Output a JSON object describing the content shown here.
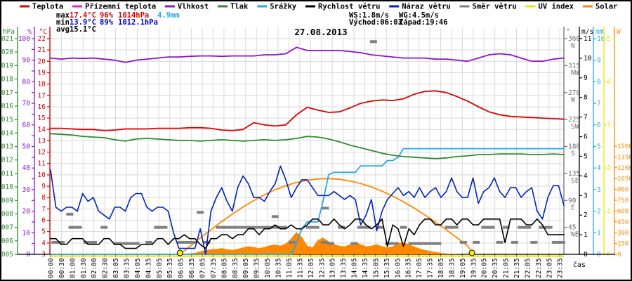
{
  "title": "27.08.2013",
  "legend": {
    "items": [
      {
        "label": "Teplota",
        "color": "#dd0000"
      },
      {
        "label": "Přízemní teplota",
        "color": "#ee22cc"
      },
      {
        "label": "Vlhkost",
        "color": "#8c14c8"
      },
      {
        "label": "Tlak",
        "color": "#2e8b2e"
      },
      {
        "label": "Srážky",
        "color": "#22aaee"
      },
      {
        "label": "Rychlost větru",
        "color": "#000000"
      },
      {
        "label": "Náraz větru",
        "color": "#0022bb"
      },
      {
        "label": "Směr větru",
        "color": "#808080"
      },
      {
        "label": "UV index",
        "color": "#f0e000"
      },
      {
        "label": "Solar",
        "color": "#ff8800"
      }
    ]
  },
  "stats": {
    "left_rows": [
      [
        {
          "text": "max",
          "color": "#000000"
        },
        {
          "text": "17.4°C",
          "color": "#dd0000"
        },
        {
          "text": "96%",
          "color": "#dd0000"
        },
        {
          "text": "1014hPa",
          "color": "#dd0000"
        },
        {
          "text": "4.9mm",
          "color": "#22aaee"
        }
      ],
      [
        {
          "text": "min",
          "color": "#000000"
        },
        {
          "text": "13.9°C",
          "color": "#0000cc"
        },
        {
          "text": "89%",
          "color": "#0000cc"
        },
        {
          "text": "1012.1hPa",
          "color": "#0000cc"
        }
      ],
      [
        {
          "text": "avg",
          "color": "#000000"
        },
        {
          "text": "15.1°C",
          "color": "#000000"
        }
      ]
    ],
    "right_rows": [
      [
        {
          "text": "WS:1.8m/s",
          "color": "#000000"
        },
        {
          "text": "WG:4.5m/s",
          "color": "#000000"
        }
      ],
      [
        {
          "text": "Východ:06:03",
          "color": "#000000"
        },
        {
          "text": "Západ:19:46",
          "color": "#000000"
        }
      ]
    ]
  },
  "x_axis": {
    "title": "čas",
    "labels": [
      "00:00",
      "00:30",
      "01:00",
      "01:30",
      "02:00",
      "02:30",
      "03:05",
      "03:35",
      "04:05",
      "04:35",
      "05:05",
      "05:35",
      "06:05",
      "06:35",
      "07:05",
      "07:35",
      "08:05",
      "08:35",
      "09:05",
      "09:35",
      "10:05",
      "10:35",
      "11:05",
      "11:35",
      "12:05",
      "12:35",
      "13:05",
      "13:35",
      "14:05",
      "14:35",
      "15:05",
      "15:35",
      "16:05",
      "16:35",
      "17:05",
      "17:35",
      "18:05",
      "18:35",
      "19:05",
      "19:35",
      "20:05",
      "20:35",
      "21:05",
      "21:35",
      "22:05",
      "22:35",
      "23:05",
      "23:35"
    ]
  },
  "chart_data": {
    "type": "line",
    "title": "27.08.2013",
    "grid": true,
    "axes": {
      "left": [
        {
          "unit": "hPa",
          "color": "#2e8b2e",
          "min": 1005,
          "max": 1021,
          "tick": 1,
          "label_every": 1
        },
        {
          "unit": "%",
          "color": "#8c14c8",
          "min": 0,
          "max": 100,
          "tick": 5,
          "label_every": 10
        },
        {
          "unit": "°C",
          "color": "#dd0000",
          "min": 3,
          "max": 22,
          "tick": 1,
          "label_every": 1
        }
      ],
      "right": [
        {
          "unit": "°",
          "color": "#707070",
          "min": 0,
          "max": 360,
          "tick": 45,
          "compass": {
            "360": "N",
            "315": "NW",
            "270": "W",
            "225": "SW",
            "180": "S",
            "135": "SE",
            "90": "E",
            "45": "NE"
          }
        },
        {
          "unit": "m/s",
          "color": "#000000",
          "min": 0,
          "max": 11,
          "tick": 1
        },
        {
          "unit": "mm",
          "color": "#22aaee",
          "min": 0,
          "max": 10,
          "tick": 1
        },
        {
          "unit": "UV",
          "color": "#f0e000",
          "min": 0,
          "max": 5,
          "tick": 1
        },
        {
          "unit": "W",
          "color": "#ff8800",
          "min": 0,
          "max": 2990,
          "tick": 150,
          "label_max": 1500
        }
      ]
    },
    "series": [
      {
        "name": "Teplota",
        "axis": "temp",
        "color": "#dd0000",
        "t_step": 0.5,
        "values": [
          14.1,
          14.1,
          14.05,
          14.0,
          14.0,
          13.9,
          13.95,
          14.05,
          14.05,
          14.05,
          14.1,
          14.1,
          14.1,
          14.15,
          14.15,
          14.1,
          13.95,
          13.9,
          14.0,
          14.6,
          14.4,
          14.3,
          14.4,
          15.3,
          15.95,
          15.7,
          15.5,
          15.55,
          15.9,
          16.3,
          16.5,
          16.6,
          16.55,
          16.7,
          17.1,
          17.35,
          17.4,
          17.25,
          16.9,
          16.5,
          16.0,
          15.55,
          15.3,
          15.15,
          15.1,
          15.05,
          15.0,
          14.95,
          14.9
        ]
      },
      {
        "name": "Vlhkost",
        "axis": "humidity",
        "color": "#8c14c8",
        "t_step": 0.5,
        "values": [
          91,
          90.5,
          91,
          90.8,
          91,
          90.5,
          90,
          89,
          90,
          90.5,
          91,
          91.5,
          91.5,
          91.8,
          92,
          92,
          91.8,
          92,
          92,
          92,
          92.5,
          92.5,
          93,
          96,
          94.5,
          94.5,
          94.5,
          94.5,
          94,
          93.5,
          92.5,
          92,
          91.5,
          91,
          91,
          91,
          90.5,
          90.5,
          90,
          89.5,
          91,
          92.5,
          93,
          92.5,
          91,
          89.5,
          89.5,
          90.5,
          91
        ]
      },
      {
        "name": "Tlak",
        "axis": "pressure",
        "color": "#2e8b2e",
        "t_step": 0.5,
        "values": [
          1013.95,
          1013.9,
          1013.85,
          1013.75,
          1013.7,
          1013.65,
          1013.5,
          1013.4,
          1013.55,
          1013.6,
          1013.55,
          1013.5,
          1013.45,
          1013.45,
          1013.4,
          1013.45,
          1013.5,
          1013.45,
          1013.4,
          1013.45,
          1013.5,
          1013.45,
          1013.5,
          1013.6,
          1013.75,
          1013.7,
          1013.55,
          1013.35,
          1013.1,
          1012.9,
          1012.7,
          1012.5,
          1012.35,
          1012.25,
          1012.2,
          1012.15,
          1012.1,
          1012.15,
          1012.25,
          1012.3,
          1012.4,
          1012.4,
          1012.45,
          1012.45,
          1012.45,
          1012.4,
          1012.4,
          1012.45,
          1012.4
        ]
      },
      {
        "name": "Srážky",
        "axis": "rain",
        "color": "#22aaee",
        "t_step": 0.25,
        "values": [
          0,
          0,
          0,
          0,
          0,
          0,
          0,
          0,
          0,
          0,
          0,
          0,
          0,
          0,
          0,
          0,
          0,
          0,
          0,
          0,
          0,
          0,
          0,
          0,
          0,
          0,
          0,
          0,
          0,
          0,
          0,
          0,
          0,
          0,
          0,
          0,
          0,
          0,
          0,
          0,
          0,
          0,
          0,
          0,
          0,
          0,
          0.5,
          1.2,
          1.5,
          1.5,
          1.5,
          2.5,
          3.7,
          3.8,
          3.8,
          3.8,
          3.8,
          3.8,
          4.1,
          4.1,
          4.1,
          4.1,
          4.1,
          4.35,
          4.35,
          4.5,
          4.9,
          4.9,
          4.9,
          4.9,
          4.9,
          4.9,
          4.9,
          4.9,
          4.9,
          4.9,
          4.9,
          4.9,
          4.9,
          4.9,
          4.9,
          4.9,
          4.9,
          4.9,
          4.9,
          4.9,
          4.9,
          4.9,
          4.9,
          4.9,
          4.9,
          4.9,
          4.9,
          4.9,
          4.9,
          4.9,
          4.9
        ]
      },
      {
        "name": "Rychlost větru",
        "axis": "wind",
        "color": "#000000",
        "t_step": 0.25,
        "values": [
          0.8,
          0.8,
          0.5,
          0.5,
          0.8,
          0.8,
          0.8,
          0.5,
          0.5,
          0.5,
          0.8,
          0.8,
          0.5,
          0.5,
          0.3,
          0.3,
          0.3,
          0.5,
          0.5,
          0.5,
          0.8,
          0.8,
          0.5,
          0.8,
          0.8,
          1.0,
          0.8,
          0.8,
          0.5,
          0.3,
          0.8,
          0.8,
          1.0,
          1.0,
          0.8,
          1.0,
          1.0,
          1.3,
          1.3,
          1.0,
          1.3,
          1.3,
          1.5,
          1.3,
          1.3,
          1.5,
          1.3,
          1.3,
          1.5,
          1.8,
          1.8,
          1.5,
          1.5,
          1.8,
          1.5,
          1.3,
          1.5,
          1.8,
          1.8,
          1.5,
          1.3,
          1.5,
          1.8,
          0.4,
          1.5,
          1.3,
          0.4,
          1.3,
          1.0,
          1.5,
          1.8,
          1.8,
          1.5,
          1.5,
          1.8,
          1.8,
          1.5,
          1.8,
          1.8,
          1.5,
          1.5,
          1.8,
          1.8,
          1.8,
          1.8,
          0.6,
          1.8,
          1.8,
          1.8,
          1.5,
          1.5,
          1.8,
          1.5,
          1.0,
          1.0,
          1.0,
          1.0
        ]
      },
      {
        "name": "Náraz větru",
        "axis": "wind",
        "color": "#0022bb",
        "t_step": 0.25,
        "values": [
          4.3,
          2.4,
          2.2,
          2.4,
          2.4,
          2.2,
          3.1,
          2.7,
          2.9,
          2.2,
          2.0,
          1.8,
          2.4,
          2.4,
          2.2,
          2.9,
          3.1,
          3.1,
          2.4,
          2.2,
          2.4,
          2.4,
          2.2,
          1.1,
          0.3,
          0.3,
          0.3,
          0.3,
          1.3,
          0.0,
          2.2,
          2.9,
          3.4,
          2.7,
          2.2,
          3.4,
          4.0,
          3.6,
          2.9,
          2.9,
          2.7,
          3.2,
          3.6,
          4.5,
          3.8,
          2.9,
          3.4,
          3.8,
          3.8,
          3.4,
          3.0,
          3.0,
          3.0,
          3.2,
          3.0,
          2.8,
          3.0,
          2.8,
          1.5,
          2.0,
          2.8,
          1.2,
          2.2,
          2.8,
          3.1,
          3.4,
          3.0,
          3.2,
          2.9,
          3.4,
          2.9,
          3.2,
          3.4,
          2.9,
          3.2,
          3.9,
          3.2,
          2.9,
          2.9,
          3.9,
          2.6,
          3.2,
          3.4,
          3.9,
          3.2,
          2.9,
          3.4,
          3.4,
          2.9,
          3.2,
          3.4,
          2.2,
          1.8,
          2.9,
          3.5,
          3.5,
          2.5
        ]
      },
      {
        "name": "UV index",
        "axis": "uv",
        "color": "#f0e000",
        "t_step": 12,
        "values": [
          0,
          0,
          0
        ]
      },
      {
        "name": "Solar",
        "axis": "solar",
        "color": "#ff8800",
        "style": "area",
        "t_step": 0.25,
        "values": [
          0,
          0,
          0,
          0,
          0,
          0,
          0,
          0,
          0,
          0,
          0,
          0,
          0,
          0,
          0,
          0,
          0,
          0,
          0,
          0,
          0,
          0,
          0,
          0,
          0,
          5,
          12,
          20,
          40,
          55,
          70,
          75,
          85,
          70,
          60,
          75,
          95,
          110,
          100,
          85,
          100,
          125,
          135,
          120,
          150,
          220,
          310,
          240,
          120,
          95,
          200,
          230,
          180,
          140,
          120,
          110,
          140,
          170,
          140,
          110,
          120,
          140,
          110,
          95,
          110,
          160,
          165,
          140,
          110,
          80,
          60,
          45,
          30,
          20,
          12,
          6,
          2,
          0,
          0,
          0,
          0,
          0,
          0,
          0,
          0,
          0,
          0,
          0,
          0,
          0,
          0,
          0,
          0,
          0,
          0,
          0,
          0
        ]
      },
      {
        "name": "Solar maximum (křivka)",
        "axis": "solar",
        "color": "#ff8800",
        "style": "line",
        "t": [
          6.05,
          6.5,
          7,
          7.5,
          8,
          8.5,
          9,
          9.5,
          10,
          10.5,
          11,
          11.5,
          12,
          12.5,
          13,
          13.5,
          14,
          14.5,
          15,
          15.5,
          16,
          16.5,
          17,
          17.5,
          18,
          18.5,
          19,
          19.5,
          19.77
        ],
        "values": [
          0,
          108,
          227,
          342,
          453,
          559,
          656,
          745,
          825,
          896,
          951,
          996,
          1027,
          1045,
          1050,
          1040,
          1017,
          982,
          934,
          875,
          806,
          728,
          641,
          546,
          445,
          340,
          230,
          117,
          0
        ]
      }
    ],
    "wind_direction_points": [
      [
        0.2,
        20
      ],
      [
        0.5,
        20
      ],
      [
        0.9,
        67
      ],
      [
        1.0,
        45
      ],
      [
        1.3,
        45
      ],
      [
        1.7,
        20
      ],
      [
        2.0,
        20
      ],
      [
        2.5,
        45
      ],
      [
        3.1,
        18
      ],
      [
        3.4,
        18
      ],
      [
        3.7,
        18
      ],
      [
        4.0,
        18
      ],
      [
        4.6,
        20
      ],
      [
        5.0,
        45
      ],
      [
        5.3,
        45
      ],
      [
        6.1,
        20
      ],
      [
        6.4,
        20
      ],
      [
        6.7,
        20
      ],
      [
        7.0,
        70
      ],
      [
        7.3,
        20
      ],
      [
        7.9,
        45
      ],
      [
        8.2,
        45
      ],
      [
        8.5,
        45
      ],
      [
        8.8,
        45
      ],
      [
        9.1,
        45
      ],
      [
        9.4,
        45
      ],
      [
        9.7,
        45
      ],
      [
        10.0,
        45
      ],
      [
        10.3,
        45
      ],
      [
        10.6,
        45
      ],
      [
        10.9,
        45
      ],
      [
        10.5,
        63
      ],
      [
        11.3,
        20
      ],
      [
        12.1,
        45
      ],
      [
        12.4,
        45
      ],
      [
        12.8,
        20
      ],
      [
        12.85,
        77
      ],
      [
        13.1,
        18
      ],
      [
        13.6,
        45
      ],
      [
        14.2,
        18
      ],
      [
        14.5,
        45
      ],
      [
        14.8,
        45
      ],
      [
        15.1,
        355
      ],
      [
        15.4,
        45
      ],
      [
        15.8,
        18
      ],
      [
        16.1,
        18
      ],
      [
        16.5,
        45
      ],
      [
        16.9,
        18
      ],
      [
        17.2,
        18
      ],
      [
        17.5,
        18
      ],
      [
        17.8,
        18
      ],
      [
        18.1,
        18
      ],
      [
        18.6,
        45
      ],
      [
        18.9,
        45
      ],
      [
        19.3,
        20
      ],
      [
        19.9,
        20
      ],
      [
        20.3,
        45
      ],
      [
        20.6,
        45
      ],
      [
        21.0,
        20
      ],
      [
        21.3,
        45
      ],
      [
        21.7,
        20
      ],
      [
        22.0,
        45
      ],
      [
        22.3,
        45
      ],
      [
        22.6,
        20
      ],
      [
        23.0,
        45
      ],
      [
        23.3,
        45
      ],
      [
        23.6,
        20
      ],
      [
        23.9,
        20
      ]
    ],
    "sun_markers_t": [
      6.05,
      19.7
    ],
    "grid_color": "#d9d9d9"
  }
}
